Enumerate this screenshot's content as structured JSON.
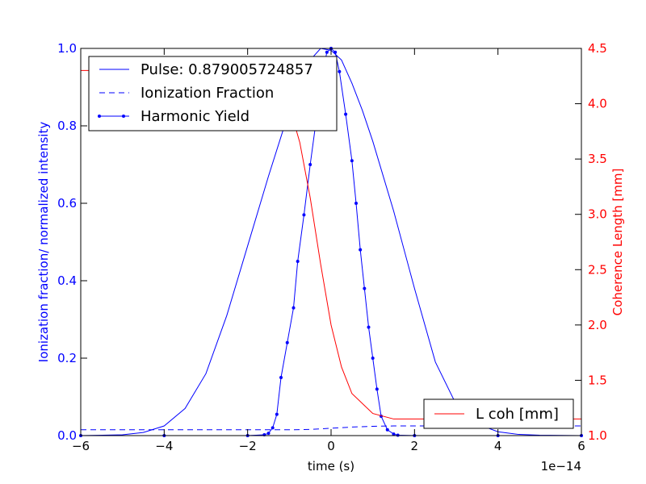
{
  "chart_data": {
    "type": "line",
    "xlabel": "time (s)",
    "x_offset_label": "1e−14",
    "x_ticks": [
      -6,
      -4,
      -2,
      0,
      2,
      4,
      6
    ],
    "xlim": [
      -6,
      6
    ],
    "left_axis": {
      "label": "Ionization fraction/ normalized intensity",
      "color": "#0000ff",
      "ylim": [
        0,
        1
      ],
      "ticks": [
        0.0,
        0.2,
        0.4,
        0.6,
        0.8,
        1.0
      ],
      "tick_labels": [
        "0.0",
        "0.2",
        "0.4",
        "0.6",
        "0.8",
        "1.0"
      ]
    },
    "right_axis": {
      "label": "Coherence Length [mm]",
      "color": "#ff0000",
      "ylim": [
        1.0,
        4.5
      ],
      "ticks": [
        1.0,
        1.5,
        2.0,
        2.5,
        3.0,
        3.5,
        4.0,
        4.5
      ],
      "tick_labels": [
        "1.0",
        "1.5",
        "2.0",
        "2.5",
        "3.0",
        "3.5",
        "4.0",
        "4.5"
      ]
    },
    "series": [
      {
        "name": "Pulse: 0.879005724857",
        "axis": "left",
        "color": "#0000ff",
        "style": "solid",
        "x": [
          -6,
          -5,
          -4.5,
          -4,
          -3.5,
          -3,
          -2.5,
          -2,
          -1.5,
          -1,
          -0.75,
          -0.5,
          -0.25,
          0,
          0.25,
          0.5,
          0.75,
          1,
          1.5,
          2,
          2.5,
          3,
          3.5,
          4,
          4.5,
          5,
          6
        ],
        "y": [
          0.0,
          0.002,
          0.008,
          0.025,
          0.07,
          0.16,
          0.31,
          0.49,
          0.67,
          0.84,
          0.91,
          0.97,
          1.0,
          0.995,
          0.97,
          0.91,
          0.84,
          0.76,
          0.58,
          0.38,
          0.19,
          0.08,
          0.03,
          0.01,
          0.003,
          0.001,
          0.0
        ]
      },
      {
        "name": "Ionization Fraction",
        "axis": "left",
        "color": "#0000ff",
        "style": "dashed",
        "x": [
          -6,
          -3,
          -1,
          -0.5,
          0,
          0.5,
          1,
          1.5,
          2,
          4,
          6
        ],
        "y": [
          0.015,
          0.015,
          0.015,
          0.016,
          0.019,
          0.022,
          0.024,
          0.025,
          0.025,
          0.025,
          0.025
        ]
      },
      {
        "name": "Harmonic Yield",
        "axis": "left",
        "color": "#0000ff",
        "style": "dots",
        "x": [
          -6,
          -4,
          -2,
          -1.6,
          -1.5,
          -1.4,
          -1.3,
          -1.2,
          -1.05,
          -0.9,
          -0.8,
          -0.65,
          -0.5,
          -0.35,
          -0.2,
          -0.1,
          0.0,
          0.1,
          0.2,
          0.35,
          0.5,
          0.6,
          0.7,
          0.8,
          0.9,
          1.0,
          1.1,
          1.2,
          1.35,
          1.5,
          1.6,
          2,
          4,
          6
        ],
        "y": [
          0,
          0,
          0,
          0.002,
          0.006,
          0.02,
          0.055,
          0.15,
          0.24,
          0.33,
          0.45,
          0.57,
          0.7,
          0.82,
          0.94,
          0.99,
          1.0,
          0.99,
          0.94,
          0.83,
          0.71,
          0.6,
          0.48,
          0.38,
          0.28,
          0.2,
          0.12,
          0.05,
          0.015,
          0.004,
          0.001,
          0,
          0,
          0
        ]
      },
      {
        "name": "L coh [mm]",
        "axis": "right",
        "color": "#ff0000",
        "style": "solid",
        "x": [
          -6,
          -3,
          -2,
          -1.5,
          -1.25,
          -1.0,
          -0.75,
          -0.5,
          -0.25,
          0,
          0.25,
          0.5,
          1.0,
          1.5,
          2,
          4,
          6
        ],
        "y": [
          4.3,
          4.3,
          4.29,
          4.24,
          4.15,
          3.98,
          3.65,
          3.15,
          2.55,
          2.0,
          1.62,
          1.38,
          1.2,
          1.15,
          1.15,
          1.15,
          1.15
        ]
      }
    ],
    "legend_upper": {
      "placement": "upper-left",
      "entries": [
        "Pulse: 0.879005724857",
        "Ionization Fraction",
        "Harmonic Yield"
      ]
    },
    "legend_lower": {
      "placement": "lower-right",
      "entries": [
        "L coh [mm]"
      ]
    }
  }
}
